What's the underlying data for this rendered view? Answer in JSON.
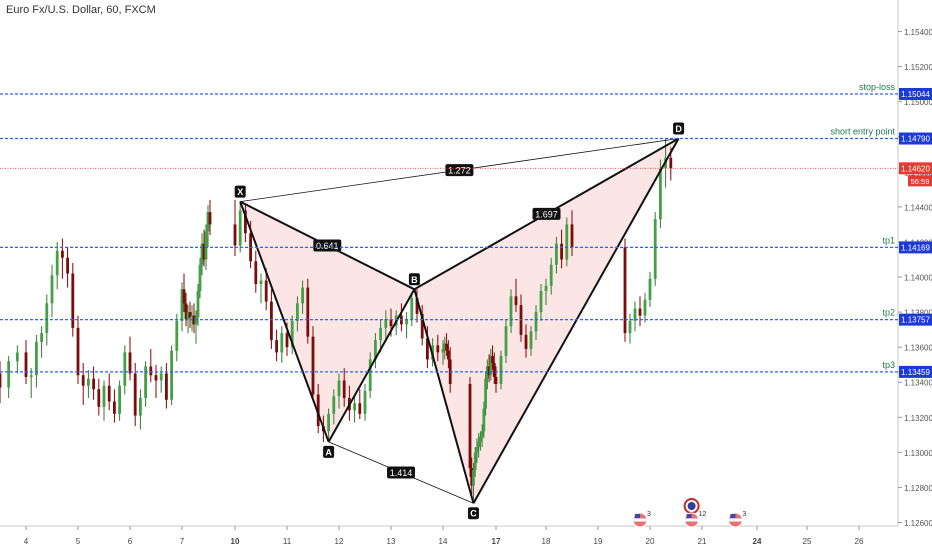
{
  "symbol_title": "Euro Fx/U.S. Dollar, 60, FXCM",
  "chart_data": {
    "type": "candlestick",
    "symbol": "Euro Fx/U.S. Dollar",
    "interval": "60",
    "source": "FXCM",
    "price_axis": {
      "range": [
        1.1258,
        1.1558
      ],
      "ticks": [
        "1.15400",
        "1.15200",
        "1.15000",
        "1.14800",
        "1.14600",
        "1.14400",
        "1.14200",
        "1.14000",
        "1.13800",
        "1.13600",
        "1.13400",
        "1.13200",
        "1.13000",
        "1.12800",
        "1.12600"
      ]
    },
    "time_axis": {
      "labels": [
        "4",
        "5",
        "6",
        "7",
        "10",
        "11",
        "12",
        "13",
        "14",
        "17",
        "18",
        "19",
        "20",
        "21",
        "24",
        "25",
        "26"
      ],
      "bold_labels": [
        "10",
        "17",
        "24"
      ]
    },
    "horizontal_levels": [
      {
        "label": "stop-loss",
        "value": "1.15044",
        "color": "#2962ff"
      },
      {
        "label": "short entry point",
        "value": "1.14790",
        "color": "#2962ff"
      },
      {
        "label": "tp1",
        "value": "1.14169",
        "color": "#2962ff"
      },
      {
        "label": "tp2",
        "value": "1.13757",
        "color": "#2962ff"
      },
      {
        "label": "tp3",
        "value": "1.13459",
        "color": "#2962ff"
      }
    ],
    "current_price": {
      "value": "1.14620",
      "countdown": "56:59",
      "color": "#e53935"
    },
    "pattern": {
      "points": [
        {
          "label": "X",
          "t": 10.1,
          "price": 1.1443
        },
        {
          "label": "A",
          "t": 11.8,
          "price": 1.1306
        },
        {
          "label": "B",
          "t": 13.45,
          "price": 1.1393
        },
        {
          "label": "C",
          "t": 15.7,
          "price": 1.1271
        },
        {
          "label": "D",
          "t": 20.55,
          "price": 1.1479
        }
      ],
      "ratios": [
        {
          "value": "1.272",
          "from": "X",
          "to": "D"
        },
        {
          "value": "0.641",
          "from": "X",
          "to": "B"
        },
        {
          "value": "1.697",
          "from": "B",
          "to": "D"
        },
        {
          "value": "1.414",
          "from": "A",
          "to": "C"
        }
      ],
      "fill_color": "#fbe1e1"
    },
    "events": [
      {
        "label": "3",
        "t": 19.8
      },
      {
        "label": "12",
        "t": 20.8
      },
      {
        "label": "3",
        "t": 22.8
      }
    ],
    "candles": [
      [
        3.7,
        1.1345,
        1.1352,
        1.1328,
        1.1337
      ],
      [
        3.8,
        1.1337,
        1.1355,
        1.1331,
        1.1352
      ],
      [
        3.9,
        1.1352,
        1.1361,
        1.1345,
        1.1357
      ],
      [
        4.0,
        1.1357,
        1.1364,
        1.1339,
        1.1343
      ],
      [
        4.1,
        1.1343,
        1.1348,
        1.1331,
        1.1344
      ],
      [
        4.2,
        1.1344,
        1.1367,
        1.1337,
        1.1363
      ],
      [
        4.3,
        1.1363,
        1.1372,
        1.1354,
        1.1368
      ],
      [
        4.4,
        1.1368,
        1.139,
        1.1361,
        1.1385
      ],
      [
        4.5,
        1.1385,
        1.1407,
        1.1377,
        1.1401
      ],
      [
        4.6,
        1.1401,
        1.142,
        1.1393,
        1.1415
      ],
      [
        4.7,
        1.1415,
        1.1422,
        1.1399,
        1.1411
      ],
      [
        4.8,
        1.1411,
        1.1417,
        1.1394,
        1.1402
      ],
      [
        4.9,
        1.1402,
        1.1408,
        1.1366,
        1.1371
      ],
      [
        5.0,
        1.1371,
        1.1378,
        1.1339,
        1.1344
      ],
      [
        5.1,
        1.1344,
        1.1351,
        1.1327,
        1.1338
      ],
      [
        5.2,
        1.1338,
        1.1347,
        1.1331,
        1.1342
      ],
      [
        5.3,
        1.1342,
        1.1349,
        1.133,
        1.1336
      ],
      [
        5.4,
        1.1336,
        1.1342,
        1.1321,
        1.1326
      ],
      [
        5.5,
        1.1326,
        1.1341,
        1.1318,
        1.1338
      ],
      [
        5.6,
        1.1338,
        1.1345,
        1.1324,
        1.1329
      ],
      [
        5.7,
        1.1329,
        1.1336,
        1.1317,
        1.1322
      ],
      [
        5.8,
        1.1322,
        1.1341,
        1.1318,
        1.1338
      ],
      [
        5.9,
        1.1338,
        1.1361,
        1.1333,
        1.1357
      ],
      [
        6.0,
        1.1357,
        1.1366,
        1.1341,
        1.1345
      ],
      [
        6.1,
        1.1345,
        1.1351,
        1.1315,
        1.1321
      ],
      [
        6.2,
        1.1321,
        1.1336,
        1.1313,
        1.1331
      ],
      [
        6.3,
        1.1331,
        1.1352,
        1.1326,
        1.1349
      ],
      [
        6.4,
        1.1349,
        1.1359,
        1.134,
        1.1344
      ],
      [
        6.5,
        1.1344,
        1.135,
        1.1331,
        1.1341
      ],
      [
        6.6,
        1.1341,
        1.1349,
        1.1334,
        1.1345
      ],
      [
        6.7,
        1.1345,
        1.1351,
        1.1325,
        1.133
      ],
      [
        6.8,
        1.133,
        1.1361,
        1.1327,
        1.1358
      ],
      [
        6.9,
        1.1358,
        1.1379,
        1.1352,
        1.1375
      ],
      [
        7.0,
        1.1375,
        1.1397,
        1.1369,
        1.1393
      ],
      [
        7.1,
        1.1393,
        1.1402,
        1.138,
        1.1385
      ],
      [
        7.2,
        1.1385,
        1.1391,
        1.1372,
        1.1376
      ],
      [
        7.3,
        1.1376,
        1.1384,
        1.1368,
        1.138
      ],
      [
        7.4,
        1.138,
        1.1386,
        1.1371,
        1.1377
      ],
      [
        7.5,
        1.1377,
        1.1384,
        1.1369,
        1.1378
      ],
      [
        7.6,
        1.1378,
        1.1385,
        1.1368,
        1.1373
      ],
      [
        7.7,
        1.1373,
        1.1381,
        1.1362,
        1.1377
      ],
      [
        7.8,
        1.1377,
        1.1396,
        1.1372,
        1.1392
      ],
      [
        7.9,
        1.1392,
        1.1411,
        1.1388,
        1.1407
      ],
      [
        8.0,
        1.1407,
        1.1425,
        1.1401,
        1.1419
      ],
      [
        8.1,
        1.1419,
        1.1427,
        1.1406,
        1.141
      ],
      [
        8.2,
        1.141,
        1.143,
        1.1404,
        1.1426
      ],
      [
        8.3,
        1.1426,
        1.1441,
        1.1417,
        1.1437
      ],
      [
        8.4,
        1.1437,
        1.1444,
        1.1424,
        1.143
      ],
      [
        10.0,
        1.143,
        1.1444,
        1.1412,
        1.1418
      ],
      [
        10.1,
        1.1418,
        1.1443,
        1.1414,
        1.1438
      ],
      [
        10.2,
        1.1438,
        1.1441,
        1.142,
        1.1425
      ],
      [
        10.3,
        1.1425,
        1.1432,
        1.1405,
        1.1409
      ],
      [
        10.4,
        1.1409,
        1.1415,
        1.1391,
        1.1396
      ],
      [
        10.5,
        1.1396,
        1.1402,
        1.1385,
        1.1398
      ],
      [
        10.6,
        1.1398,
        1.1405,
        1.1381,
        1.1386
      ],
      [
        10.7,
        1.1386,
        1.1393,
        1.1359,
        1.1364
      ],
      [
        10.8,
        1.1364,
        1.137,
        1.1352,
        1.1357
      ],
      [
        10.9,
        1.1357,
        1.1372,
        1.1351,
        1.1368
      ],
      [
        11.0,
        1.1368,
        1.1374,
        1.1355,
        1.136
      ],
      [
        11.1,
        1.136,
        1.1378,
        1.1356,
        1.1375
      ],
      [
        11.2,
        1.1375,
        1.1389,
        1.1369,
        1.1385
      ],
      [
        11.3,
        1.1385,
        1.1398,
        1.1379,
        1.1394
      ],
      [
        11.4,
        1.1394,
        1.1399,
        1.1362,
        1.1366
      ],
      [
        11.5,
        1.1366,
        1.1372,
        1.1329,
        1.1333
      ],
      [
        11.6,
        1.1333,
        1.1339,
        1.1311,
        1.1315
      ],
      [
        11.7,
        1.1315,
        1.1321,
        1.1306,
        1.1312
      ],
      [
        11.8,
        1.1312,
        1.1325,
        1.1306,
        1.1322
      ],
      [
        11.9,
        1.1322,
        1.1336,
        1.1316,
        1.1332
      ],
      [
        12.0,
        1.1332,
        1.1345,
        1.1325,
        1.1341
      ],
      [
        12.1,
        1.1341,
        1.1348,
        1.1326,
        1.1331
      ],
      [
        12.2,
        1.1331,
        1.1338,
        1.1318,
        1.1324
      ],
      [
        12.3,
        1.1324,
        1.1332,
        1.1317,
        1.1328
      ],
      [
        12.4,
        1.1328,
        1.1336,
        1.1319,
        1.1322
      ],
      [
        12.5,
        1.1322,
        1.1339,
        1.1318,
        1.1335
      ],
      [
        12.6,
        1.1335,
        1.1357,
        1.1331,
        1.1353
      ],
      [
        12.7,
        1.1353,
        1.1368,
        1.1348,
        1.1364
      ],
      [
        12.8,
        1.1364,
        1.1376,
        1.1357,
        1.1371
      ],
      [
        12.9,
        1.1371,
        1.1381,
        1.1364,
        1.1376
      ],
      [
        13.0,
        1.1376,
        1.1382,
        1.1366,
        1.1372
      ],
      [
        13.1,
        1.1372,
        1.1381,
        1.1367,
        1.1378
      ],
      [
        13.2,
        1.1378,
        1.1385,
        1.1369,
        1.1373
      ],
      [
        13.3,
        1.1373,
        1.138,
        1.1365,
        1.1376
      ],
      [
        13.4,
        1.1376,
        1.1391,
        1.1372,
        1.1388
      ],
      [
        13.5,
        1.1388,
        1.1393,
        1.1374,
        1.1379
      ],
      [
        13.6,
        1.1379,
        1.1384,
        1.1361,
        1.1365
      ],
      [
        13.7,
        1.1365,
        1.1372,
        1.1348,
        1.1353
      ],
      [
        13.8,
        1.1353,
        1.1365,
        1.1349,
        1.1361
      ],
      [
        13.9,
        1.1361,
        1.1367,
        1.1352,
        1.1357
      ],
      [
        14.0,
        1.1357,
        1.1364,
        1.135,
        1.1359
      ],
      [
        14.1,
        1.1359,
        1.1366,
        1.1353,
        1.1362
      ],
      [
        14.2,
        1.1362,
        1.1368,
        1.1355,
        1.1358
      ],
      [
        14.3,
        1.1358,
        1.1364,
        1.1348,
        1.1353
      ],
      [
        14.4,
        1.1353,
        1.136,
        1.1334,
        1.1339
      ],
      [
        15.5,
        1.1339,
        1.1343,
        1.1286,
        1.1291
      ],
      [
        15.6,
        1.1291,
        1.1297,
        1.1276,
        1.1281
      ],
      [
        15.7,
        1.1281,
        1.1294,
        1.1271,
        1.129
      ],
      [
        15.8,
        1.129,
        1.1303,
        1.1286,
        1.13
      ],
      [
        15.9,
        1.13,
        1.1308,
        1.1294,
        1.1303
      ],
      [
        16.0,
        1.1303,
        1.1311,
        1.1297,
        1.1306
      ],
      [
        16.1,
        1.1306,
        1.1312,
        1.1301,
        1.1309
      ],
      [
        16.2,
        1.1309,
        1.1316,
        1.1303,
        1.1312
      ],
      [
        16.3,
        1.1312,
        1.1329,
        1.1308,
        1.1325
      ],
      [
        16.4,
        1.1325,
        1.1346,
        1.1321,
        1.1342
      ],
      [
        16.5,
        1.1342,
        1.1353,
        1.1336,
        1.1349
      ],
      [
        16.6,
        1.1349,
        1.1356,
        1.134,
        1.1344
      ],
      [
        16.7,
        1.1344,
        1.1359,
        1.1341,
        1.1355
      ],
      [
        16.8,
        1.1355,
        1.1361,
        1.1347,
        1.1351
      ],
      [
        16.9,
        1.1351,
        1.1357,
        1.1339,
        1.1343
      ],
      [
        17.0,
        1.1343,
        1.1349,
        1.1334,
        1.1339
      ],
      [
        17.1,
        1.1339,
        1.1358,
        1.1336,
        1.1355
      ],
      [
        17.2,
        1.1355,
        1.1376,
        1.1351,
        1.1372
      ],
      [
        17.3,
        1.1372,
        1.1393,
        1.1368,
        1.1389
      ],
      [
        17.4,
        1.1389,
        1.1399,
        1.138,
        1.1384
      ],
      [
        17.5,
        1.1384,
        1.139,
        1.1363,
        1.1367
      ],
      [
        17.6,
        1.1367,
        1.1373,
        1.1354,
        1.1359
      ],
      [
        17.7,
        1.1359,
        1.1372,
        1.1355,
        1.1369
      ],
      [
        17.8,
        1.1369,
        1.1384,
        1.1364,
        1.138
      ],
      [
        17.9,
        1.138,
        1.1396,
        1.1375,
        1.1392
      ],
      [
        18.0,
        1.1392,
        1.1399,
        1.1384,
        1.1395
      ],
      [
        18.1,
        1.1395,
        1.1411,
        1.139,
        1.1407
      ],
      [
        18.2,
        1.1407,
        1.1423,
        1.1402,
        1.1419
      ],
      [
        18.3,
        1.1419,
        1.1427,
        1.1405,
        1.141
      ],
      [
        18.4,
        1.141,
        1.1434,
        1.1406,
        1.143
      ],
      [
        18.5,
        1.143,
        1.1438,
        1.1412,
        1.1417
      ],
      [
        19.5,
        1.1417,
        1.1422,
        1.1363,
        1.1368
      ],
      [
        19.6,
        1.1368,
        1.1379,
        1.1362,
        1.1375
      ],
      [
        19.7,
        1.1375,
        1.1386,
        1.1369,
        1.1382
      ],
      [
        19.8,
        1.1382,
        1.1389,
        1.1372,
        1.1378
      ],
      [
        19.9,
        1.1378,
        1.1391,
        1.1374,
        1.1387
      ],
      [
        20.0,
        1.1387,
        1.1403,
        1.1383,
        1.1399
      ],
      [
        20.1,
        1.1399,
        1.1437,
        1.1395,
        1.1433
      ],
      [
        20.2,
        1.1433,
        1.1467,
        1.1428,
        1.1462
      ],
      [
        20.3,
        1.1462,
        1.1479,
        1.1451,
        1.1468
      ],
      [
        20.4,
        1.1468,
        1.1474,
        1.1455,
        1.1462
      ]
    ]
  }
}
